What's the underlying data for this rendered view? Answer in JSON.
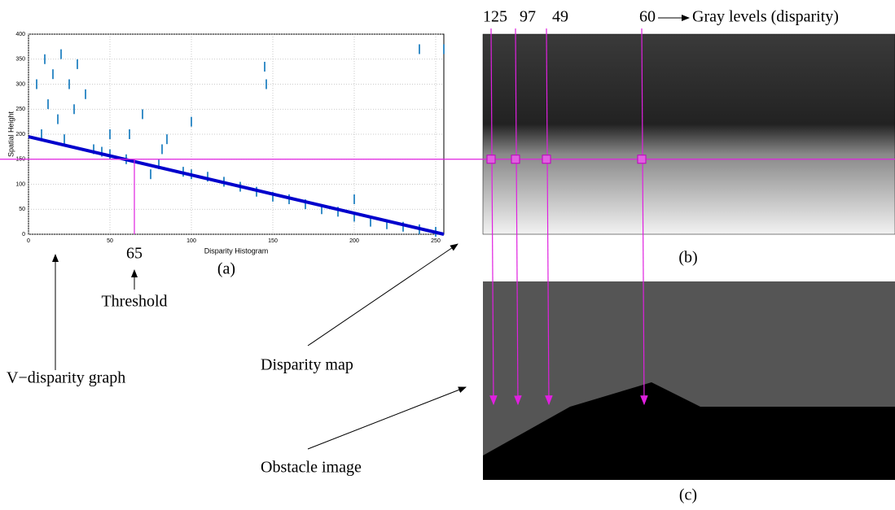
{
  "chart_data": {
    "type": "line",
    "x_label": "Disparity Histogram",
    "y_label": "Spatial Height",
    "xlim": [
      0,
      255
    ],
    "ylim": [
      0,
      400
    ],
    "xticks": [
      0,
      50,
      100,
      150,
      200,
      250
    ],
    "yticks": [
      0,
      50,
      100,
      150,
      200,
      250,
      300,
      350,
      400
    ],
    "grid": true,
    "series": [
      {
        "color": "#0000cc",
        "x": [
          0,
          255
        ],
        "values": [
          195,
          0
        ]
      },
      {
        "color": "#3a8fc8",
        "x": [
          5,
          8,
          10,
          12,
          15,
          18,
          20,
          22,
          25,
          28,
          30,
          35,
          40,
          45,
          50,
          50,
          60,
          62,
          70,
          75,
          80,
          82,
          85,
          95,
          100,
          100,
          110,
          120,
          130,
          140,
          145,
          146,
          150,
          160,
          170,
          180,
          190,
          200,
          200,
          210,
          220,
          230,
          240,
          240,
          250,
          255
        ],
        "values": [
          300,
          200,
          350,
          260,
          320,
          230,
          360,
          190,
          300,
          250,
          340,
          280,
          170,
          165,
          160,
          200,
          150,
          200,
          240,
          120,
          140,
          170,
          190,
          125,
          120,
          225,
          115,
          105,
          95,
          85,
          335,
          300,
          75,
          70,
          60,
          50,
          45,
          35,
          70,
          25,
          20,
          15,
          10,
          370,
          5,
          370
        ]
      }
    ],
    "threshold": {
      "x": 65,
      "y": 150
    }
  },
  "annotations": {
    "panel_a": "(a)",
    "panel_b": "(b)",
    "panel_c": "(c)",
    "threshold": "Threshold",
    "v_disparity": "V−disparity graph",
    "disparity_map": "Disparity map",
    "obstacle_image": "Obstacle image",
    "gray_levels_label": "Gray levels (disparity)",
    "gray_levels": [
      125,
      97,
      49,
      60
    ]
  }
}
